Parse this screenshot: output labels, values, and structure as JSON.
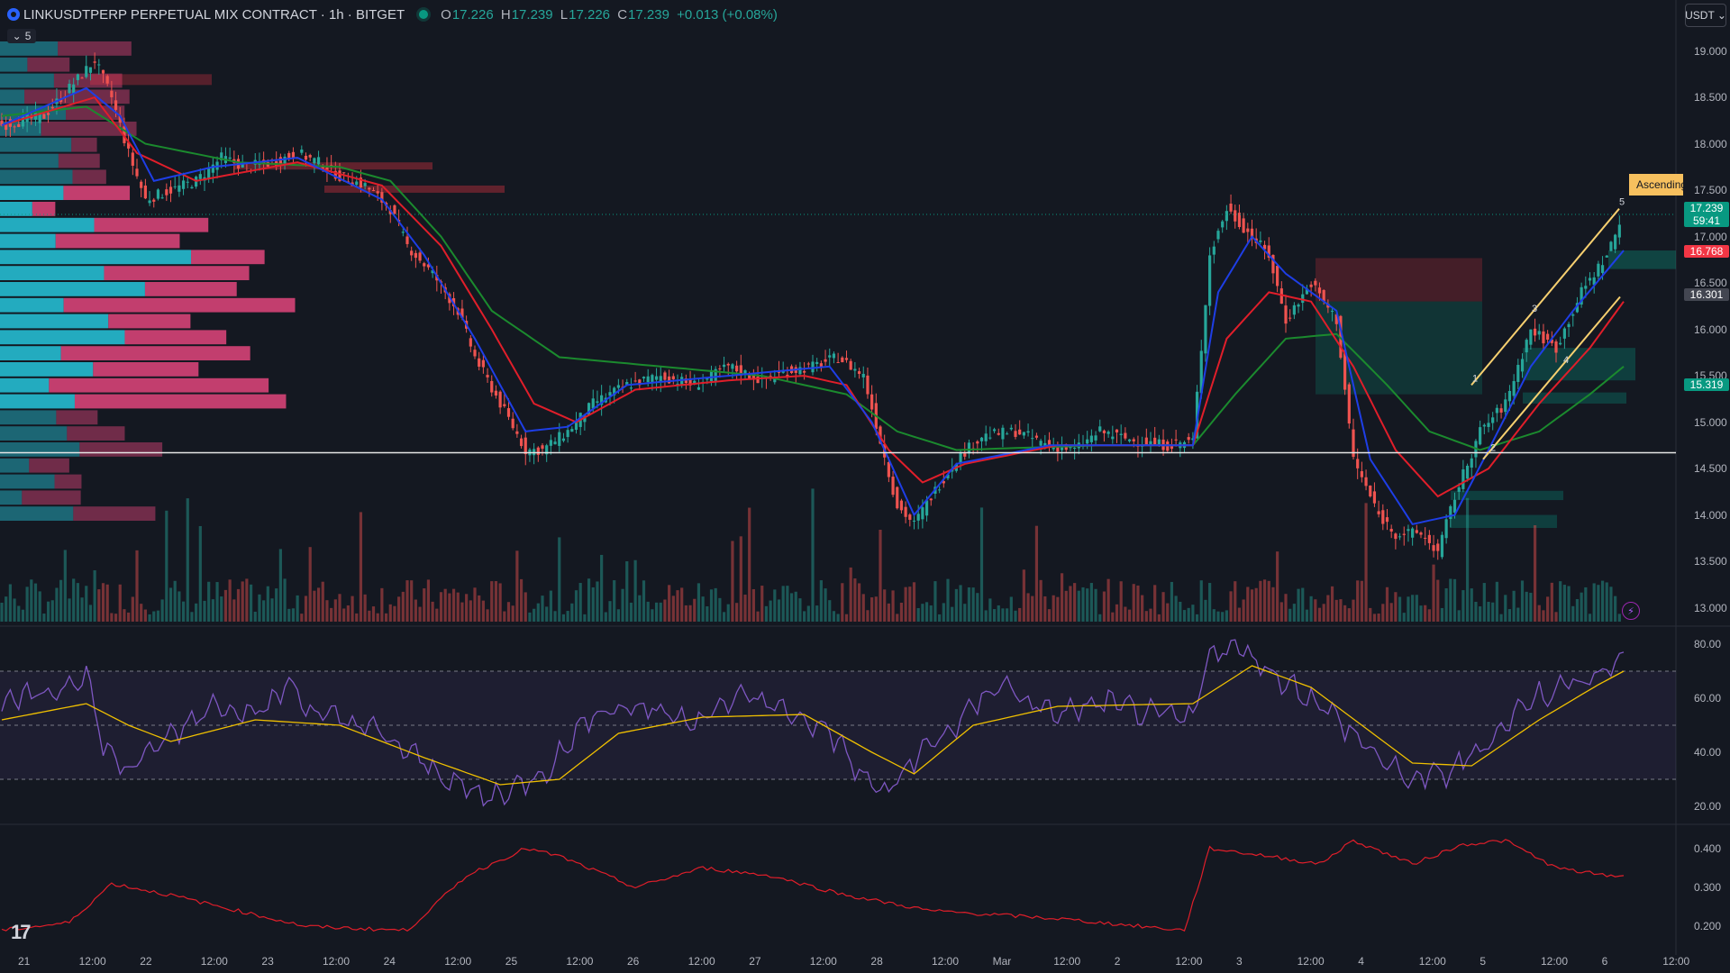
{
  "header": {
    "symbol": "LINKUSDTPERP PERPETUAL MIX CONTRACT · 1h · BITGET",
    "ohlc": {
      "o_label": "O",
      "o": "17.226",
      "h_label": "H",
      "h": "17.239",
      "l_label": "L",
      "l": "17.226",
      "c_label": "C",
      "c": "17.239",
      "change": "+0.013 (+0.08%)"
    },
    "indicator_toggle": "5",
    "currency": "USDT"
  },
  "price_axis": {
    "labels": [
      "19.000",
      "18.500",
      "18.000",
      "17.500",
      "17.000",
      "16.500",
      "16.000",
      "15.500",
      "15.000",
      "14.500",
      "14.000",
      "13.500",
      "13.000"
    ],
    "last_price": "17.239",
    "countdown": "59:41",
    "tag_red": "16.768",
    "tag_gray": "16.301",
    "tag_green": "15.319"
  },
  "rsi_axis": {
    "labels": [
      "80.00",
      "60.00",
      "40.00",
      "20.00"
    ]
  },
  "lower_axis": {
    "labels": [
      "0.400",
      "0.300",
      "0.200"
    ]
  },
  "time_axis": {
    "labels": [
      "21",
      "12:00",
      "22",
      "12:00",
      "23",
      "12:00",
      "24",
      "12:00",
      "25",
      "12:00",
      "26",
      "12:00",
      "27",
      "12:00",
      "28",
      "12:00",
      "Mar",
      "12:00",
      "2",
      "12:00",
      "3",
      "12:00",
      "4",
      "12:00",
      "5",
      "12:00",
      "6",
      "12:00"
    ]
  },
  "pattern": {
    "label": "Ascending",
    "wave_labels": [
      "1",
      "2",
      "3",
      "4",
      "5"
    ]
  },
  "chart_data": {
    "type": "candlestick",
    "interval": "1h",
    "ylim": [
      12.85,
      19.2
    ],
    "close_path": [
      [
        0,
        18.2
      ],
      [
        10,
        18.3
      ],
      [
        18,
        18.7
      ],
      [
        22,
        18.9
      ],
      [
        26,
        18.5
      ],
      [
        30,
        17.9
      ],
      [
        34,
        17.4
      ],
      [
        40,
        17.5
      ],
      [
        46,
        17.6
      ],
      [
        52,
        17.85
      ],
      [
        58,
        17.75
      ],
      [
        64,
        17.8
      ],
      [
        70,
        17.9
      ],
      [
        75,
        17.8
      ],
      [
        80,
        17.65
      ],
      [
        86,
        17.55
      ],
      [
        92,
        17.3
      ],
      [
        96,
        16.9
      ],
      [
        102,
        16.6
      ],
      [
        108,
        16.2
      ],
      [
        112,
        15.7
      ],
      [
        118,
        15.2
      ],
      [
        124,
        14.7
      ],
      [
        128,
        14.7
      ],
      [
        134,
        14.9
      ],
      [
        140,
        15.2
      ],
      [
        148,
        15.4
      ],
      [
        156,
        15.5
      ],
      [
        164,
        15.4
      ],
      [
        172,
        15.6
      ],
      [
        180,
        15.45
      ],
      [
        186,
        15.55
      ],
      [
        192,
        15.6
      ],
      [
        198,
        15.7
      ],
      [
        204,
        15.5
      ],
      [
        208,
        14.8
      ],
      [
        212,
        14.1
      ],
      [
        216,
        13.9
      ],
      [
        220,
        14.2
      ],
      [
        226,
        14.6
      ],
      [
        232,
        14.85
      ],
      [
        240,
        14.9
      ],
      [
        248,
        14.75
      ],
      [
        254,
        14.7
      ],
      [
        260,
        14.9
      ],
      [
        268,
        14.8
      ],
      [
        276,
        14.75
      ],
      [
        282,
        14.8
      ],
      [
        286,
        16.8
      ],
      [
        290,
        17.3
      ],
      [
        294,
        17.1
      ],
      [
        300,
        16.8
      ],
      [
        304,
        16.1
      ],
      [
        310,
        16.5
      ],
      [
        316,
        16.1
      ],
      [
        320,
        14.6
      ],
      [
        326,
        14.0
      ],
      [
        330,
        13.8
      ],
      [
        336,
        13.8
      ],
      [
        340,
        13.6
      ],
      [
        344,
        14.2
      ],
      [
        350,
        14.9
      ],
      [
        356,
        15.2
      ],
      [
        362,
        16.0
      ],
      [
        368,
        15.8
      ],
      [
        374,
        16.4
      ],
      [
        380,
        16.8
      ],
      [
        384,
        17.239
      ]
    ],
    "ema_blue": [
      [
        0,
        18.2
      ],
      [
        20,
        18.6
      ],
      [
        28,
        18.3
      ],
      [
        36,
        17.6
      ],
      [
        50,
        17.75
      ],
      [
        70,
        17.85
      ],
      [
        90,
        17.4
      ],
      [
        100,
        16.8
      ],
      [
        112,
        15.9
      ],
      [
        124,
        14.9
      ],
      [
        134,
        14.95
      ],
      [
        148,
        15.4
      ],
      [
        172,
        15.5
      ],
      [
        196,
        15.6
      ],
      [
        206,
        15.0
      ],
      [
        216,
        14.0
      ],
      [
        226,
        14.55
      ],
      [
        248,
        14.75
      ],
      [
        282,
        14.75
      ],
      [
        288,
        16.4
      ],
      [
        296,
        17.0
      ],
      [
        304,
        16.6
      ],
      [
        316,
        16.2
      ],
      [
        324,
        14.6
      ],
      [
        334,
        13.9
      ],
      [
        344,
        14.0
      ],
      [
        352,
        14.7
      ],
      [
        362,
        15.6
      ],
      [
        372,
        16.2
      ],
      [
        384,
        16.85
      ]
    ],
    "ema_red": [
      [
        0,
        18.2
      ],
      [
        22,
        18.5
      ],
      [
        32,
        17.9
      ],
      [
        46,
        17.6
      ],
      [
        70,
        17.8
      ],
      [
        90,
        17.55
      ],
      [
        104,
        16.9
      ],
      [
        116,
        16.0
      ],
      [
        126,
        15.2
      ],
      [
        136,
        15.0
      ],
      [
        150,
        15.35
      ],
      [
        172,
        15.45
      ],
      [
        190,
        15.5
      ],
      [
        200,
        15.4
      ],
      [
        210,
        14.7
      ],
      [
        218,
        14.35
      ],
      [
        228,
        14.55
      ],
      [
        250,
        14.75
      ],
      [
        282,
        14.75
      ],
      [
        290,
        15.9
      ],
      [
        300,
        16.4
      ],
      [
        310,
        16.3
      ],
      [
        320,
        15.6
      ],
      [
        330,
        14.7
      ],
      [
        340,
        14.2
      ],
      [
        352,
        14.5
      ],
      [
        364,
        15.2
      ],
      [
        376,
        15.8
      ],
      [
        384,
        16.3
      ]
    ],
    "ema_green": [
      [
        0,
        18.3
      ],
      [
        20,
        18.4
      ],
      [
        34,
        18.0
      ],
      [
        56,
        17.8
      ],
      [
        80,
        17.75
      ],
      [
        92,
        17.6
      ],
      [
        104,
        17.0
      ],
      [
        116,
        16.2
      ],
      [
        132,
        15.7
      ],
      [
        156,
        15.6
      ],
      [
        180,
        15.5
      ],
      [
        200,
        15.3
      ],
      [
        212,
        14.9
      ],
      [
        226,
        14.7
      ],
      [
        260,
        14.75
      ],
      [
        282,
        14.75
      ],
      [
        292,
        15.3
      ],
      [
        304,
        15.9
      ],
      [
        316,
        15.95
      ],
      [
        328,
        15.4
      ],
      [
        338,
        14.9
      ],
      [
        350,
        14.7
      ],
      [
        364,
        14.9
      ],
      [
        376,
        15.3
      ],
      [
        384,
        15.6
      ]
    ],
    "horizontal_level": 14.67,
    "rsi_ylim": [
      15,
      85
    ],
    "rsi_levels": [
      70,
      50,
      30
    ],
    "rsi": [
      [
        0,
        58
      ],
      [
        12,
        62
      ],
      [
        20,
        70
      ],
      [
        24,
        42
      ],
      [
        30,
        33
      ],
      [
        38,
        44
      ],
      [
        50,
        58
      ],
      [
        62,
        55
      ],
      [
        68,
        66
      ],
      [
        74,
        54
      ],
      [
        86,
        50
      ],
      [
        96,
        40
      ],
      [
        106,
        30
      ],
      [
        114,
        23
      ],
      [
        122,
        27
      ],
      [
        130,
        35
      ],
      [
        140,
        55
      ],
      [
        150,
        57
      ],
      [
        166,
        52
      ],
      [
        176,
        62
      ],
      [
        184,
        56
      ],
      [
        196,
        48
      ],
      [
        204,
        30
      ],
      [
        210,
        25
      ],
      [
        216,
        38
      ],
      [
        226,
        50
      ],
      [
        236,
        66
      ],
      [
        248,
        54
      ],
      [
        262,
        58
      ],
      [
        272,
        54
      ],
      [
        282,
        52
      ],
      [
        286,
        78
      ],
      [
        294,
        78
      ],
      [
        302,
        68
      ],
      [
        312,
        58
      ],
      [
        322,
        44
      ],
      [
        332,
        30
      ],
      [
        342,
        32
      ],
      [
        352,
        44
      ],
      [
        362,
        60
      ],
      [
        372,
        66
      ],
      [
        380,
        70
      ],
      [
        384,
        76
      ]
    ],
    "rsi_ma": [
      [
        0,
        52
      ],
      [
        20,
        58
      ],
      [
        30,
        50
      ],
      [
        40,
        44
      ],
      [
        60,
        52
      ],
      [
        80,
        50
      ],
      [
        100,
        38
      ],
      [
        118,
        28
      ],
      [
        132,
        30
      ],
      [
        146,
        47
      ],
      [
        166,
        53
      ],
      [
        190,
        54
      ],
      [
        206,
        40
      ],
      [
        216,
        32
      ],
      [
        230,
        50
      ],
      [
        250,
        57
      ],
      [
        282,
        58
      ],
      [
        296,
        72
      ],
      [
        310,
        64
      ],
      [
        322,
        50
      ],
      [
        334,
        36
      ],
      [
        348,
        35
      ],
      [
        364,
        52
      ],
      [
        378,
        65
      ],
      [
        384,
        70
      ]
    ],
    "lower_ylim": [
      0.15,
      0.45
    ],
    "lower_series": [
      [
        0,
        0.19
      ],
      [
        16,
        0.21
      ],
      [
        26,
        0.31
      ],
      [
        40,
        0.28
      ],
      [
        56,
        0.24
      ],
      [
        72,
        0.2
      ],
      [
        96,
        0.19
      ],
      [
        110,
        0.33
      ],
      [
        124,
        0.4
      ],
      [
        132,
        0.38
      ],
      [
        150,
        0.3
      ],
      [
        166,
        0.35
      ],
      [
        182,
        0.33
      ],
      [
        200,
        0.28
      ],
      [
        220,
        0.24
      ],
      [
        250,
        0.22
      ],
      [
        270,
        0.2
      ],
      [
        280,
        0.19
      ],
      [
        286,
        0.4
      ],
      [
        300,
        0.38
      ],
      [
        312,
        0.36
      ],
      [
        320,
        0.42
      ],
      [
        334,
        0.36
      ],
      [
        346,
        0.41
      ],
      [
        356,
        0.42
      ],
      [
        368,
        0.35
      ],
      [
        380,
        0.33
      ]
    ]
  }
}
